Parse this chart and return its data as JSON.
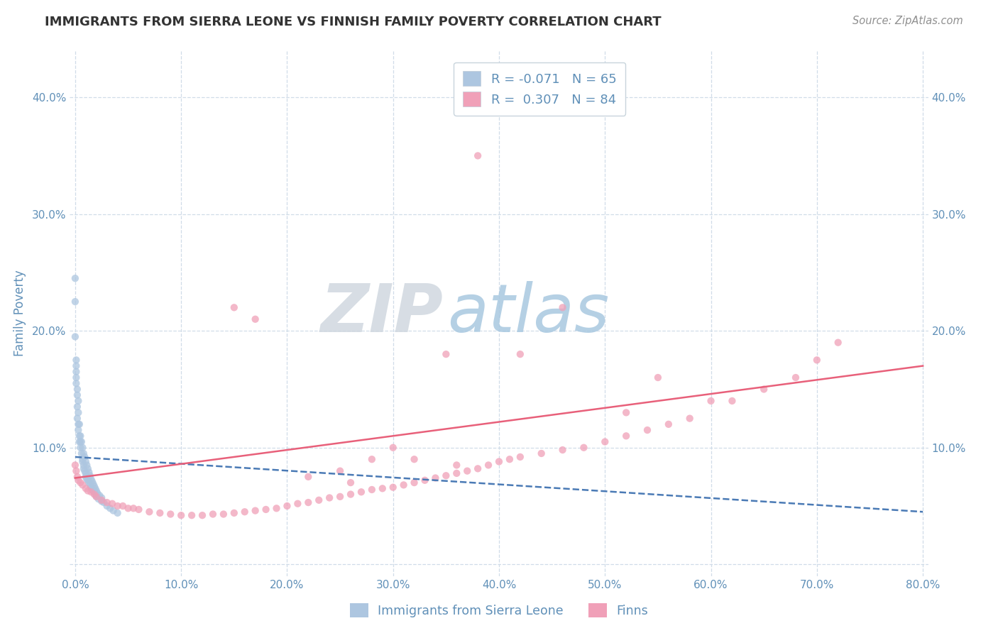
{
  "title": "IMMIGRANTS FROM SIERRA LEONE VS FINNISH FAMILY POVERTY CORRELATION CHART",
  "source": "Source: ZipAtlas.com",
  "ylabel": "Family Poverty",
  "watermark_zip": "ZIP",
  "watermark_atlas": "atlas",
  "legend_blue_r": "R = -0.071",
  "legend_blue_n": "N = 65",
  "legend_pink_r": "R =  0.307",
  "legend_pink_n": "N = 84",
  "legend_blue_label": "Immigrants from Sierra Leone",
  "legend_pink_label": "Finns",
  "xlim": [
    -0.005,
    0.805
  ],
  "ylim": [
    -0.01,
    0.44
  ],
  "xticks": [
    0.0,
    0.1,
    0.2,
    0.3,
    0.4,
    0.5,
    0.6,
    0.7,
    0.8
  ],
  "yticks": [
    0.0,
    0.1,
    0.2,
    0.3,
    0.4
  ],
  "ytick_labels_left": [
    "",
    "10.0%",
    "20.0%",
    "30.0%",
    "40.0%"
  ],
  "ytick_labels_right": [
    "",
    "10.0%",
    "20.0%",
    "30.0%",
    "40.0%"
  ],
  "xtick_labels": [
    "0.0%",
    "10.0%",
    "20.0%",
    "30.0%",
    "40.0%",
    "50.0%",
    "60.0%",
    "70.0%",
    "80.0%"
  ],
  "blue_color": "#adc6e0",
  "pink_color": "#f0a0b8",
  "blue_line_color": "#4a7ab5",
  "pink_line_color": "#e8607a",
  "title_color": "#333333",
  "axis_tick_color": "#6090b8",
  "grid_color": "#d0dce8",
  "background_color": "#ffffff",
  "blue_scatter_x": [
    0.0,
    0.0,
    0.0,
    0.001,
    0.001,
    0.001,
    0.002,
    0.002,
    0.002,
    0.003,
    0.003,
    0.004,
    0.004,
    0.005,
    0.005,
    0.006,
    0.007,
    0.007,
    0.008,
    0.008,
    0.009,
    0.01,
    0.01,
    0.011,
    0.012,
    0.013,
    0.014,
    0.015,
    0.016,
    0.017,
    0.018,
    0.019,
    0.02,
    0.022,
    0.025,
    0.027,
    0.03,
    0.033,
    0.036,
    0.04,
    0.001,
    0.001,
    0.002,
    0.003,
    0.003,
    0.004,
    0.005,
    0.006,
    0.007,
    0.008,
    0.009,
    0.01,
    0.011,
    0.012,
    0.013,
    0.014,
    0.015,
    0.016,
    0.017,
    0.018,
    0.019,
    0.02,
    0.021,
    0.023,
    0.025
  ],
  "blue_scatter_y": [
    0.245,
    0.225,
    0.195,
    0.175,
    0.165,
    0.155,
    0.145,
    0.135,
    0.125,
    0.12,
    0.115,
    0.11,
    0.105,
    0.105,
    0.1,
    0.095,
    0.09,
    0.088,
    0.085,
    0.082,
    0.08,
    0.078,
    0.075,
    0.073,
    0.072,
    0.07,
    0.068,
    0.066,
    0.064,
    0.063,
    0.062,
    0.06,
    0.058,
    0.056,
    0.054,
    0.053,
    0.05,
    0.048,
    0.046,
    0.044,
    0.17,
    0.16,
    0.15,
    0.14,
    0.13,
    0.12,
    0.11,
    0.105,
    0.1,
    0.095,
    0.092,
    0.088,
    0.085,
    0.082,
    0.079,
    0.076,
    0.073,
    0.071,
    0.069,
    0.067,
    0.065,
    0.063,
    0.061,
    0.059,
    0.057
  ],
  "pink_scatter_x": [
    0.0,
    0.001,
    0.002,
    0.003,
    0.005,
    0.007,
    0.01,
    0.012,
    0.015,
    0.018,
    0.02,
    0.025,
    0.03,
    0.035,
    0.04,
    0.045,
    0.05,
    0.055,
    0.06,
    0.07,
    0.08,
    0.09,
    0.1,
    0.11,
    0.12,
    0.13,
    0.14,
    0.15,
    0.16,
    0.17,
    0.18,
    0.19,
    0.2,
    0.21,
    0.22,
    0.23,
    0.24,
    0.25,
    0.26,
    0.27,
    0.28,
    0.29,
    0.3,
    0.31,
    0.32,
    0.33,
    0.34,
    0.35,
    0.36,
    0.37,
    0.38,
    0.39,
    0.4,
    0.41,
    0.42,
    0.44,
    0.46,
    0.48,
    0.5,
    0.52,
    0.54,
    0.56,
    0.58,
    0.62,
    0.65,
    0.68,
    0.7,
    0.72,
    0.46,
    0.38,
    0.52,
    0.35,
    0.55,
    0.6,
    0.3,
    0.42,
    0.25,
    0.28,
    0.32,
    0.36,
    0.22,
    0.26,
    0.15,
    0.17
  ],
  "pink_scatter_y": [
    0.085,
    0.08,
    0.075,
    0.072,
    0.07,
    0.068,
    0.065,
    0.063,
    0.062,
    0.06,
    0.058,
    0.055,
    0.053,
    0.052,
    0.05,
    0.05,
    0.048,
    0.048,
    0.047,
    0.045,
    0.044,
    0.043,
    0.042,
    0.042,
    0.042,
    0.043,
    0.043,
    0.044,
    0.045,
    0.046,
    0.047,
    0.048,
    0.05,
    0.052,
    0.053,
    0.055,
    0.057,
    0.058,
    0.06,
    0.062,
    0.064,
    0.065,
    0.066,
    0.068,
    0.07,
    0.072,
    0.074,
    0.076,
    0.078,
    0.08,
    0.082,
    0.085,
    0.088,
    0.09,
    0.092,
    0.095,
    0.098,
    0.1,
    0.105,
    0.11,
    0.115,
    0.12,
    0.125,
    0.14,
    0.15,
    0.16,
    0.175,
    0.19,
    0.22,
    0.35,
    0.13,
    0.18,
    0.16,
    0.14,
    0.1,
    0.18,
    0.08,
    0.09,
    0.09,
    0.085,
    0.075,
    0.07,
    0.22,
    0.21
  ],
  "blue_trend_x": [
    0.0,
    0.8
  ],
  "blue_trend_y": [
    0.092,
    0.045
  ],
  "pink_trend_x": [
    0.0,
    0.8
  ],
  "pink_trend_y": [
    0.074,
    0.17
  ]
}
